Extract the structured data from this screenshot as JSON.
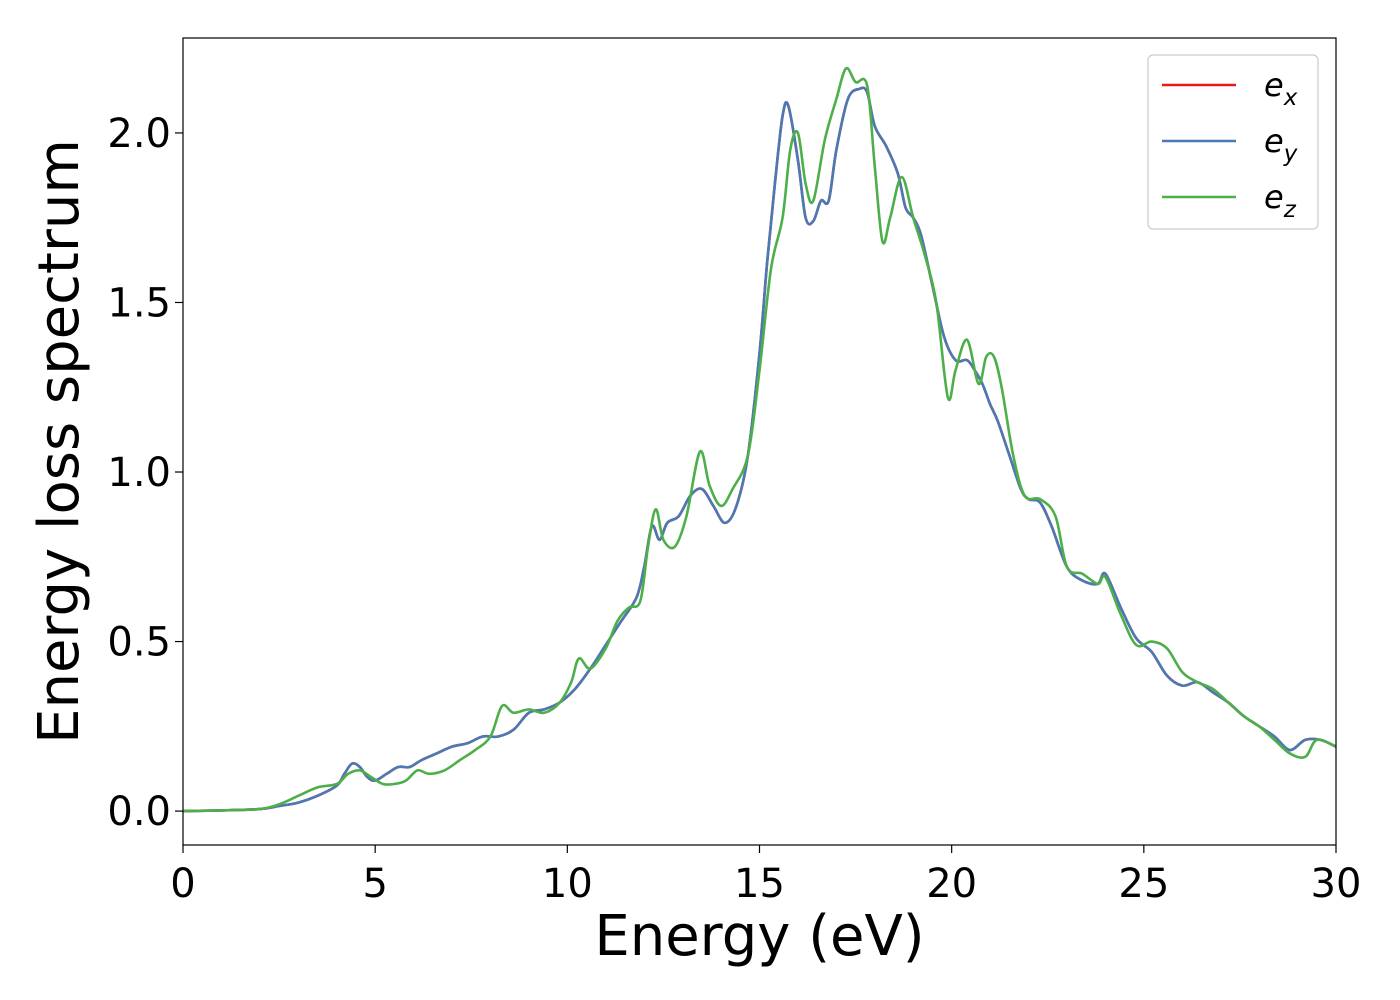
{
  "chart_data": {
    "type": "line",
    "xlabel": "Energy (eV)",
    "ylabel": "Energy loss spectrum",
    "xlim": [
      0,
      30
    ],
    "ylim": [
      -0.1,
      2.28
    ],
    "xticks": [
      "0",
      "5",
      "10",
      "15",
      "20",
      "25",
      "30"
    ],
    "yticks": [
      "0.0",
      "0.5",
      "1.0",
      "1.5",
      "2.0"
    ],
    "legend_position": "top-right",
    "grid": false,
    "series": [
      {
        "name": "e_x",
        "legend_base": "e",
        "legend_sub": "x",
        "color": "#e41a1c",
        "x": [
          0,
          1,
          2,
          2.5,
          3,
          3.5,
          4,
          4.2,
          4.4,
          4.6,
          4.8,
          5,
          5.3,
          5.6,
          5.9,
          6.2,
          6.6,
          7,
          7.4,
          7.8,
          8.2,
          8.6,
          9,
          9.4,
          9.8,
          10.2,
          10.6,
          11,
          11.4,
          11.8,
          12.0,
          12.2,
          12.4,
          12.6,
          12.9,
          13.2,
          13.5,
          13.8,
          14.1,
          14.4,
          14.7,
          15.0,
          15.2,
          15.4,
          15.6,
          15.75,
          16.0,
          16.2,
          16.4,
          16.6,
          16.8,
          17.0,
          17.3,
          17.6,
          17.8,
          18.0,
          18.3,
          18.6,
          18.8,
          19.0,
          19.2,
          19.5,
          19.8,
          20.1,
          20.4,
          20.6,
          20.8,
          21.0,
          21.2,
          21.5,
          21.8,
          22.0,
          22.3,
          22.6,
          23.0,
          23.4,
          23.8,
          24.0,
          24.4,
          24.8,
          25.2,
          25.6,
          26.0,
          26.4,
          26.8,
          27.2,
          27.6,
          28.0,
          28.4,
          28.8,
          29.2,
          29.6,
          30
        ],
        "y": [
          0,
          0.002,
          0.006,
          0.015,
          0.025,
          0.045,
          0.075,
          0.11,
          0.14,
          0.13,
          0.1,
          0.09,
          0.11,
          0.13,
          0.13,
          0.15,
          0.17,
          0.19,
          0.2,
          0.22,
          0.22,
          0.24,
          0.29,
          0.3,
          0.32,
          0.36,
          0.42,
          0.49,
          0.56,
          0.63,
          0.72,
          0.84,
          0.8,
          0.85,
          0.87,
          0.93,
          0.95,
          0.9,
          0.85,
          0.9,
          1.05,
          1.35,
          1.62,
          1.85,
          2.05,
          2.08,
          1.92,
          1.75,
          1.74,
          1.8,
          1.8,
          1.95,
          2.1,
          2.13,
          2.12,
          2.02,
          1.96,
          1.88,
          1.78,
          1.75,
          1.7,
          1.55,
          1.4,
          1.33,
          1.33,
          1.3,
          1.26,
          1.2,
          1.15,
          1.05,
          0.95,
          0.92,
          0.91,
          0.84,
          0.72,
          0.68,
          0.67,
          0.7,
          0.6,
          0.51,
          0.47,
          0.4,
          0.37,
          0.38,
          0.35,
          0.32,
          0.28,
          0.25,
          0.22,
          0.18,
          0.21,
          0.21,
          0.19
        ]
      },
      {
        "name": "e_y",
        "legend_base": "e",
        "legend_sub": "y",
        "color": "#4a7ab5",
        "x": [
          0,
          1,
          2,
          2.5,
          3,
          3.5,
          4,
          4.2,
          4.4,
          4.6,
          4.8,
          5,
          5.3,
          5.6,
          5.9,
          6.2,
          6.6,
          7,
          7.4,
          7.8,
          8.2,
          8.6,
          9,
          9.4,
          9.8,
          10.2,
          10.6,
          11,
          11.4,
          11.8,
          12.0,
          12.2,
          12.4,
          12.6,
          12.9,
          13.2,
          13.5,
          13.8,
          14.1,
          14.4,
          14.7,
          15.0,
          15.2,
          15.4,
          15.6,
          15.75,
          16.0,
          16.2,
          16.4,
          16.6,
          16.8,
          17.0,
          17.3,
          17.6,
          17.8,
          18.0,
          18.3,
          18.6,
          18.8,
          19.0,
          19.2,
          19.5,
          19.8,
          20.1,
          20.4,
          20.6,
          20.8,
          21.0,
          21.2,
          21.5,
          21.8,
          22.0,
          22.3,
          22.6,
          23.0,
          23.4,
          23.8,
          24.0,
          24.4,
          24.8,
          25.2,
          25.6,
          26.0,
          26.4,
          26.8,
          27.2,
          27.6,
          28.0,
          28.4,
          28.8,
          29.2,
          29.6,
          30
        ],
        "y": [
          0,
          0.002,
          0.006,
          0.015,
          0.025,
          0.045,
          0.075,
          0.11,
          0.14,
          0.13,
          0.1,
          0.09,
          0.11,
          0.13,
          0.13,
          0.15,
          0.17,
          0.19,
          0.2,
          0.22,
          0.22,
          0.24,
          0.29,
          0.3,
          0.32,
          0.36,
          0.42,
          0.49,
          0.56,
          0.63,
          0.72,
          0.84,
          0.8,
          0.85,
          0.87,
          0.93,
          0.95,
          0.9,
          0.85,
          0.9,
          1.05,
          1.35,
          1.62,
          1.85,
          2.05,
          2.08,
          1.92,
          1.75,
          1.74,
          1.8,
          1.8,
          1.95,
          2.1,
          2.13,
          2.12,
          2.02,
          1.96,
          1.88,
          1.78,
          1.75,
          1.7,
          1.55,
          1.4,
          1.33,
          1.33,
          1.3,
          1.26,
          1.2,
          1.15,
          1.05,
          0.95,
          0.92,
          0.91,
          0.84,
          0.72,
          0.68,
          0.67,
          0.7,
          0.6,
          0.51,
          0.47,
          0.4,
          0.37,
          0.38,
          0.35,
          0.32,
          0.28,
          0.25,
          0.22,
          0.18,
          0.21,
          0.21,
          0.19
        ]
      },
      {
        "name": "e_z",
        "legend_base": "e",
        "legend_sub": "z",
        "color": "#4daf4a",
        "x": [
          0,
          1,
          2,
          2.5,
          3,
          3.5,
          4,
          4.3,
          4.6,
          4.9,
          5.2,
          5.5,
          5.8,
          6.1,
          6.4,
          6.8,
          7.2,
          7.6,
          8.0,
          8.3,
          8.6,
          9.0,
          9.4,
          9.8,
          10.1,
          10.3,
          10.6,
          11.0,
          11.3,
          11.6,
          11.9,
          12.1,
          12.3,
          12.5,
          12.8,
          13.1,
          13.45,
          13.7,
          14.0,
          14.3,
          14.7,
          15.0,
          15.3,
          15.6,
          15.8,
          16.0,
          16.2,
          16.4,
          16.7,
          17.0,
          17.25,
          17.5,
          17.8,
          18.0,
          18.2,
          18.4,
          18.7,
          19.0,
          19.3,
          19.6,
          19.9,
          20.1,
          20.4,
          20.7,
          20.9,
          21.1,
          21.3,
          21.6,
          21.9,
          22.3,
          22.7,
          23.0,
          23.4,
          23.8,
          24.0,
          24.4,
          24.8,
          25.2,
          25.6,
          26.0,
          26.4,
          26.8,
          27.2,
          27.6,
          28.0,
          28.4,
          28.8,
          29.2,
          29.5,
          30
        ],
        "y": [
          0,
          0.002,
          0.006,
          0.02,
          0.045,
          0.07,
          0.08,
          0.11,
          0.12,
          0.1,
          0.08,
          0.08,
          0.09,
          0.12,
          0.11,
          0.12,
          0.15,
          0.18,
          0.22,
          0.31,
          0.29,
          0.3,
          0.29,
          0.32,
          0.38,
          0.45,
          0.42,
          0.48,
          0.56,
          0.6,
          0.62,
          0.78,
          0.89,
          0.8,
          0.78,
          0.87,
          1.06,
          0.96,
          0.9,
          0.95,
          1.05,
          1.3,
          1.6,
          1.75,
          1.95,
          2.0,
          1.85,
          1.8,
          1.98,
          2.1,
          2.19,
          2.15,
          2.14,
          1.9,
          1.68,
          1.75,
          1.87,
          1.75,
          1.64,
          1.5,
          1.22,
          1.3,
          1.39,
          1.26,
          1.34,
          1.34,
          1.25,
          1.05,
          0.93,
          0.92,
          0.87,
          0.72,
          0.7,
          0.67,
          0.69,
          0.58,
          0.49,
          0.5,
          0.48,
          0.41,
          0.38,
          0.36,
          0.32,
          0.28,
          0.25,
          0.21,
          0.17,
          0.16,
          0.21,
          0.19
        ]
      }
    ]
  }
}
